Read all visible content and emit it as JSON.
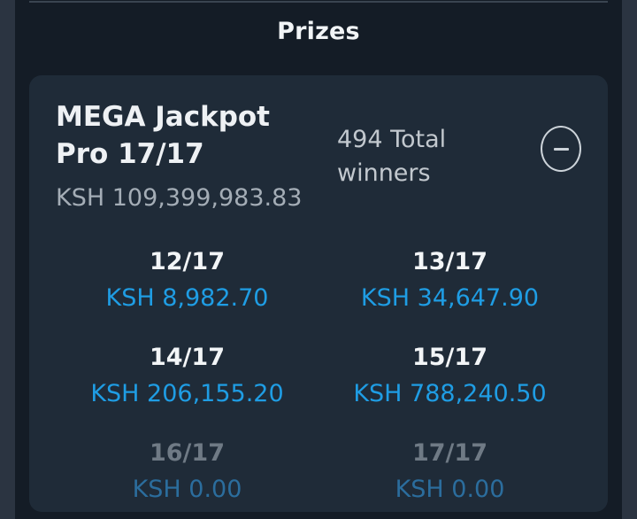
{
  "page": {
    "title": "Prizes"
  },
  "card": {
    "title": "MEGA Jackpot Pro 17/17",
    "jackpot_amount": "KSH 109,399,983.83",
    "total_winners": "494 Total winners",
    "collapse_icon": "minus-icon",
    "tiers": [
      {
        "label": "12/17",
        "amount": "KSH 8,982.70",
        "dimmed": false
      },
      {
        "label": "13/17",
        "amount": "KSH 34,647.90",
        "dimmed": false
      },
      {
        "label": "14/17",
        "amount": "KSH 206,155.20",
        "dimmed": false
      },
      {
        "label": "15/17",
        "amount": "KSH 788,240.50",
        "dimmed": false
      },
      {
        "label": "16/17",
        "amount": "KSH 0.00",
        "dimmed": true
      },
      {
        "label": "17/17",
        "amount": "KSH 0.00",
        "dimmed": true
      }
    ]
  },
  "colors": {
    "page_background": "#141c26",
    "gutter_background": "#2b3441",
    "card_background": "#1f2b38",
    "accent_blue": "#1f9de4",
    "dimmed_blue": "#2b6d9d",
    "text_primary": "#eef1f4",
    "text_secondary": "#a4adb6"
  }
}
